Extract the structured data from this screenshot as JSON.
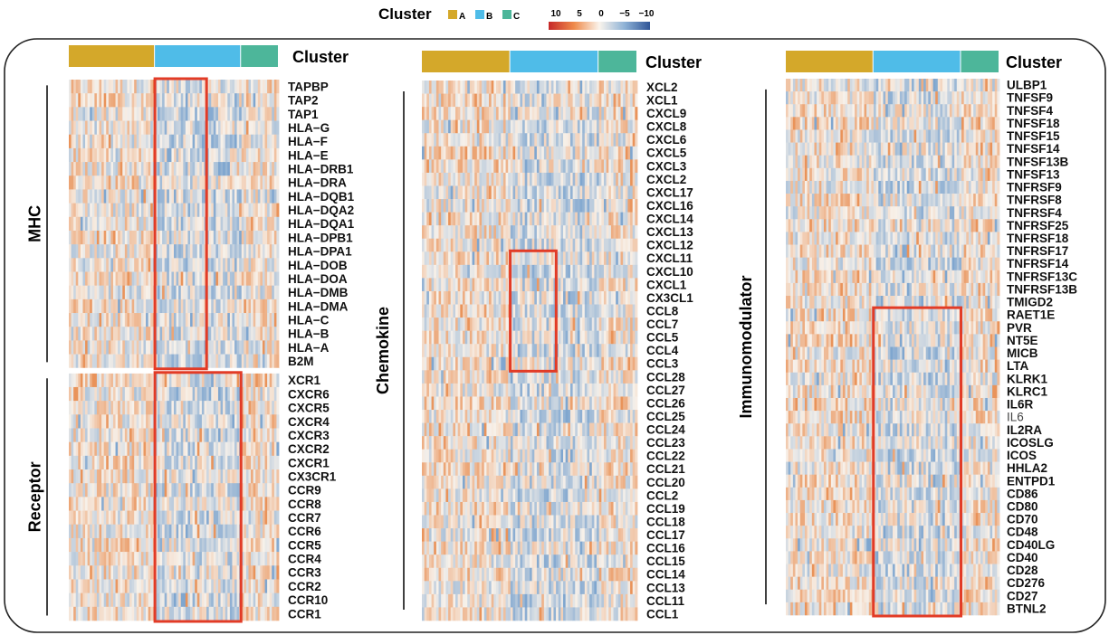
{
  "legend": {
    "title": "Cluster",
    "items": [
      {
        "label": "A",
        "color": "#D4A82A"
      },
      {
        "label": "B",
        "color": "#4FBCE8"
      },
      {
        "label": "C",
        "color": "#4DB69A"
      }
    ],
    "scale_ticks": [
      "10",
      "5",
      "0",
      "−5",
      "−10"
    ],
    "scale_colors": [
      "#C62828",
      "#EF8A4A",
      "#FAF4EC",
      "#8EB2D6",
      "#2F5597"
    ]
  },
  "chart_data": [
    {
      "type": "heatmap",
      "annotation_label": "Cluster",
      "clusters": [
        "A",
        "B",
        "C"
      ],
      "cluster_share": [
        0.35,
        0.35,
        0.15
      ],
      "groups": [
        {
          "label": "MHC",
          "genes": [
            "TAPBP",
            "TAP2",
            "TAP1",
            "HLA−G",
            "HLA−F",
            "HLA−E",
            "HLA−DRB1",
            "HLA−DRA",
            "HLA−DQB1",
            "HLA−DQA2",
            "HLA−DQA1",
            "HLA−DPB1",
            "HLA−DPA1",
            "HLA−DOB",
            "HLA−DOA",
            "HLA−DMB",
            "HLA−DMA",
            "HLA−C",
            "HLA−B",
            "HLA−A",
            "B2M"
          ]
        },
        {
          "label": "Receptor",
          "genes": [
            "XCR1",
            "CXCR6",
            "CXCR5",
            "CXCR4",
            "CXCR3",
            "CXCR2",
            "CXCR1",
            "CX3CR1",
            "CCR9",
            "CCR8",
            "CCR7",
            "CCR6",
            "CCR5",
            "CCR4",
            "CCR3",
            "CCR2",
            "CCR10",
            "CCR1"
          ]
        }
      ],
      "highlights": [
        {
          "genes": [
            "TAPBP",
            "B2M"
          ],
          "cluster": "B",
          "trend": "low"
        },
        {
          "genes": [
            "XCR1",
            "CCR1"
          ],
          "cluster": "B",
          "trend": "low"
        }
      ]
    },
    {
      "type": "heatmap",
      "annotation_label": "Cluster",
      "clusters": [
        "A",
        "B",
        "C"
      ],
      "cluster_share": [
        0.35,
        0.35,
        0.15
      ],
      "groups": [
        {
          "label": "Chemokine",
          "genes": [
            "XCL2",
            "XCL1",
            "CXCL9",
            "CXCL8",
            "CXCL6",
            "CXCL5",
            "CXCL3",
            "CXCL2",
            "CXCL17",
            "CXCL16",
            "CXCL14",
            "CXCL13",
            "CXCL12",
            "CXCL11",
            "CXCL10",
            "CXCL1",
            "CX3CL1",
            "CCL8",
            "CCL7",
            "CCL5",
            "CCL4",
            "CCL3",
            "CCL28",
            "CCL27",
            "CCL26",
            "CCL25",
            "CCL24",
            "CCL23",
            "CCL22",
            "CCL21",
            "CCL20",
            "CCL2",
            "CCL19",
            "CCL18",
            "CCL17",
            "CCL16",
            "CCL15",
            "CCL14",
            "CCL13",
            "CCL11",
            "CCL1"
          ]
        }
      ],
      "highlights": [
        {
          "genes": [
            "CXCL11",
            "CCL3"
          ],
          "cluster": "B",
          "trend": "low"
        }
      ]
    },
    {
      "type": "heatmap",
      "annotation_label": "Cluster",
      "clusters": [
        "A",
        "B",
        "C"
      ],
      "cluster_share": [
        0.35,
        0.35,
        0.15
      ],
      "groups": [
        {
          "label": "Immunomodulator",
          "genes": [
            "ULBP1",
            "TNFSF9",
            "TNFSF4",
            "TNFSF18",
            "TNFSF15",
            "TNFSF14",
            "TNFSF13B",
            "TNFSF13",
            "TNFRSF9",
            "TNFRSF8",
            "TNFRSF4",
            "TNFRSF25",
            "TNFRSF18",
            "TNFRSF17",
            "TNFRSF14",
            "TNFRSF13C",
            "TNFRSF13B",
            "TMIGD2",
            "RAET1E",
            "PVR",
            "NT5E",
            "MICB",
            "LTA",
            "KLRK1",
            "KLRC1",
            "IL6R",
            "IL6",
            "IL2RA",
            "ICOSLG",
            "ICOS",
            "HHLA2",
            "ENTPD1",
            "CD86",
            "CD80",
            "CD70",
            "CD48",
            "CD40LG",
            "CD40",
            "CD28",
            "CD276",
            "CD27",
            "BTNL2"
          ]
        }
      ],
      "highlights": [
        {
          "genes": [
            "RAET1E",
            "BTNL2"
          ],
          "cluster": "B",
          "trend": "low"
        }
      ]
    }
  ]
}
